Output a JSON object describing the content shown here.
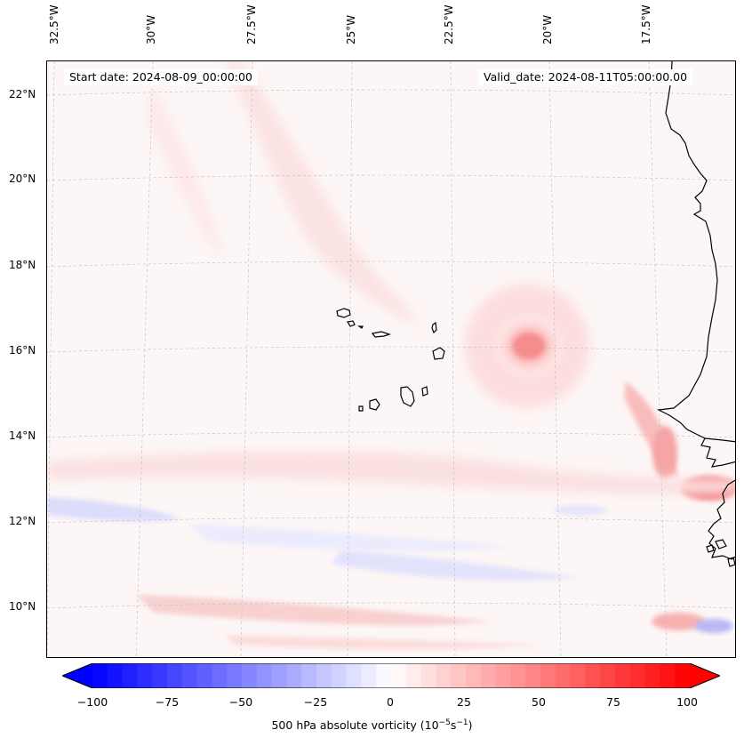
{
  "header": {
    "start_date": "Start date: 2024-08-09_00:00:00",
    "valid_date": "Valid_date: 2024-08-11T05:00:00.00"
  },
  "axes": {
    "longitude_labels": [
      "32.5°W",
      "30°W",
      "27.5°W",
      "25°W",
      "22.5°W",
      "20°W",
      "17.5°W"
    ],
    "latitude_labels": [
      "22°N",
      "20°N",
      "18°N",
      "16°N",
      "14°N",
      "12°N",
      "10°N"
    ]
  },
  "colorbar": {
    "label_prefix": "500 hPa absolute vorticity (10",
    "label_exp1": "−5",
    "label_mid": "s",
    "label_exp2": "−1",
    "label_suffix": ")",
    "ticks": [
      "−100",
      "−75",
      "−50",
      "−25",
      "0",
      "25",
      "50",
      "75",
      "100"
    ],
    "range": [
      -100,
      100
    ],
    "step": 5,
    "colors": {
      "negative": "#0000ff",
      "neutral": "#ffffff",
      "positive": "#ff0000"
    }
  },
  "map": {
    "colors": {
      "background": "#fdf6f6",
      "coast": "#000000",
      "grid": "#bbbbbb"
    }
  }
}
